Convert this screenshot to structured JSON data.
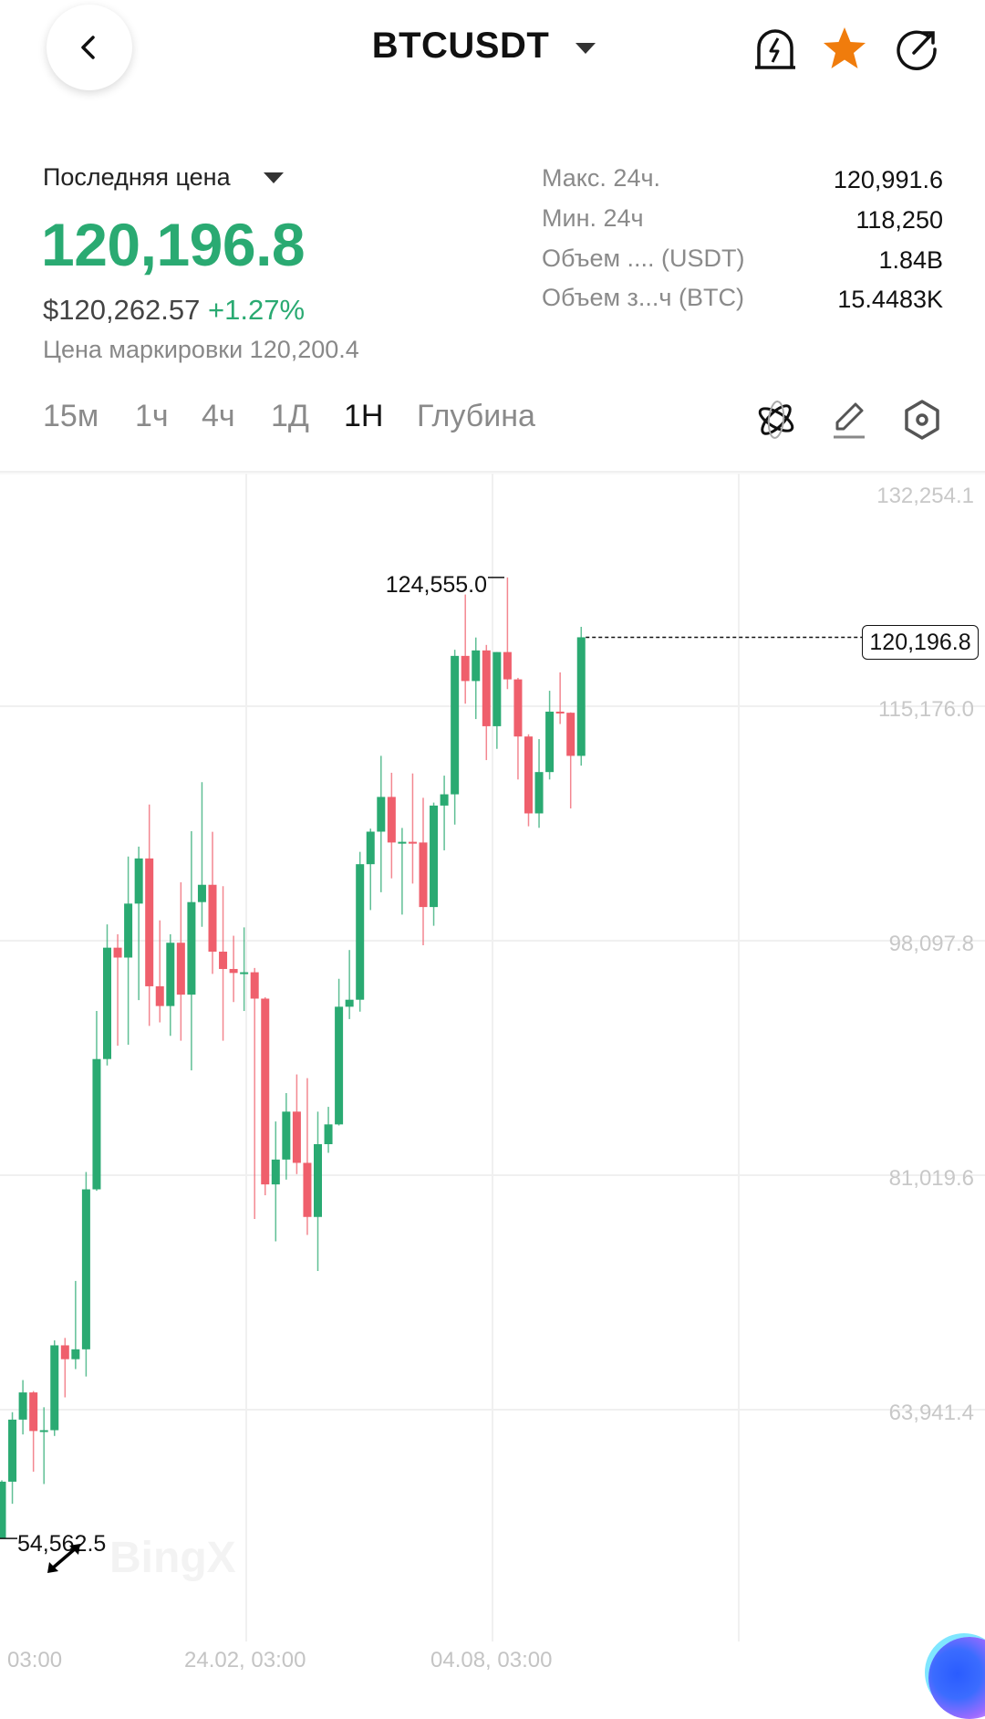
{
  "header": {
    "symbol": "BTCUSDT",
    "icons": [
      "back-chevron-icon",
      "dropdown-triangle-icon",
      "price-alert-icon",
      "favorite-star-icon",
      "share-icon"
    ],
    "star_color": "#f07c0c"
  },
  "price_panel": {
    "mode_label": "Последняя цена",
    "last_price": "120,196.8",
    "usd_price": "$120,262.57",
    "change": "+1.27%",
    "mark_price": "Цена маркировки 120,200.4"
  },
  "stats": [
    {
      "label": "Макс. 24ч.",
      "value": "120,991.6"
    },
    {
      "label": "Мин. 24ч",
      "value": "118,250"
    },
    {
      "label": "Объем .... (USDT)",
      "value": "1.84B"
    },
    {
      "label": "Объем з...ч (BTC)",
      "value": "15.4483K"
    }
  ],
  "timeframes": [
    {
      "label": "15м",
      "active": false
    },
    {
      "label": "1ч",
      "active": false
    },
    {
      "label": "4ч",
      "active": false
    },
    {
      "label": "1Д",
      "active": false
    },
    {
      "label": "1Н",
      "active": true
    },
    {
      "label": "Глубина",
      "active": false
    }
  ],
  "toolbar_icons": [
    "indicators-atom-icon",
    "draw-pencil-icon",
    "settings-hexagon-icon"
  ],
  "colors": {
    "up": "#2aaa72",
    "down": "#ef5f6c",
    "accent_green": "#2aaa72"
  },
  "chart_data": {
    "type": "candlestick",
    "y_ticks": [
      "132,254.1",
      "115,176.0",
      "98,097.8",
      "81,019.6",
      "63,941.4"
    ],
    "x_ticks": [
      "03:00",
      "24.02, 03:00",
      "04.08, 03:00"
    ],
    "ylim": [
      50000,
      132254.1
    ],
    "current_price": "120,196.8",
    "max_label": "124,555.0",
    "min_label": "54,562.5",
    "watermark": "BingX",
    "candles_ohlc": [
      [
        54600,
        58800,
        54562.5,
        58700
      ],
      [
        58700,
        63760,
        57090,
        63220
      ],
      [
        63220,
        66100,
        62140,
        65200
      ],
      [
        65200,
        65300,
        59430,
        62390
      ],
      [
        62390,
        64120,
        58530,
        62450
      ],
      [
        62450,
        68990,
        62030,
        68630
      ],
      [
        68630,
        69170,
        64840,
        67620
      ],
      [
        67620,
        73320,
        66900,
        68340
      ],
      [
        68340,
        81250,
        66360,
        79990
      ],
      [
        79990,
        92980,
        79880,
        89480
      ],
      [
        89480,
        99290,
        89010,
        97590
      ],
      [
        97590,
        98570,
        90450,
        96870
      ],
      [
        96870,
        104230,
        90520,
        100800
      ],
      [
        100800,
        104950,
        93770,
        104090
      ],
      [
        104090,
        108020,
        91890,
        94780
      ],
      [
        94780,
        99580,
        92150,
        93340
      ],
      [
        93340,
        98570,
        91170,
        97950
      ],
      [
        97950,
        102350,
        90810,
        94170
      ],
      [
        94170,
        106070,
        88650,
        100910
      ],
      [
        100910,
        109640,
        99110,
        102170
      ],
      [
        102170,
        106030,
        95680,
        97300
      ],
      [
        97300,
        102070,
        90810,
        96040
      ],
      [
        96040,
        98460,
        93630,
        95750
      ],
      [
        95750,
        99070,
        92980,
        95800
      ],
      [
        95800,
        96110,
        77830,
        93880
      ],
      [
        93880,
        93980,
        79560,
        80350
      ],
      [
        80350,
        84930,
        76200,
        82160
      ],
      [
        82160,
        87000,
        80700,
        85650
      ],
      [
        85650,
        88360,
        81100,
        81920
      ],
      [
        81920,
        88090,
        76670,
        77980
      ],
      [
        77980,
        85650,
        74040,
        83280
      ],
      [
        83280,
        86000,
        82650,
        84720
      ],
      [
        84720,
        95320,
        84640,
        93290
      ],
      [
        93290,
        97420,
        92390,
        93800
      ],
      [
        93800,
        104570,
        92930,
        103670
      ],
      [
        103670,
        106260,
        100330,
        106040
      ],
      [
        106040,
        111560,
        101630,
        108570
      ],
      [
        108570,
        110330,
        102640,
        105250
      ],
      [
        105250,
        106310,
        100000,
        105300
      ],
      [
        105300,
        110280,
        102260,
        105250
      ],
      [
        105250,
        108510,
        97770,
        100550
      ],
      [
        100550,
        108160,
        99190,
        107940
      ],
      [
        107940,
        110120,
        104680,
        108760
      ],
      [
        108760,
        119290,
        106550,
        118840
      ],
      [
        118840,
        123310,
        115360,
        117010
      ],
      [
        117010,
        120180,
        114240,
        119240
      ],
      [
        119240,
        119640,
        111250,
        113720
      ],
      [
        113720,
        119120,
        112070,
        119120
      ],
      [
        119120,
        124555,
        116420,
        117130
      ],
      [
        117130,
        117240,
        109840,
        112970
      ],
      [
        112970,
        113130,
        106430,
        107370
      ],
      [
        107370,
        112780,
        106320,
        110380
      ],
      [
        110380,
        116300,
        109840,
        114780
      ],
      [
        114780,
        117640,
        113880,
        114700
      ],
      [
        114700,
        114730,
        107730,
        111560
      ],
      [
        111560,
        120960,
        110850,
        120196.8
      ]
    ]
  }
}
